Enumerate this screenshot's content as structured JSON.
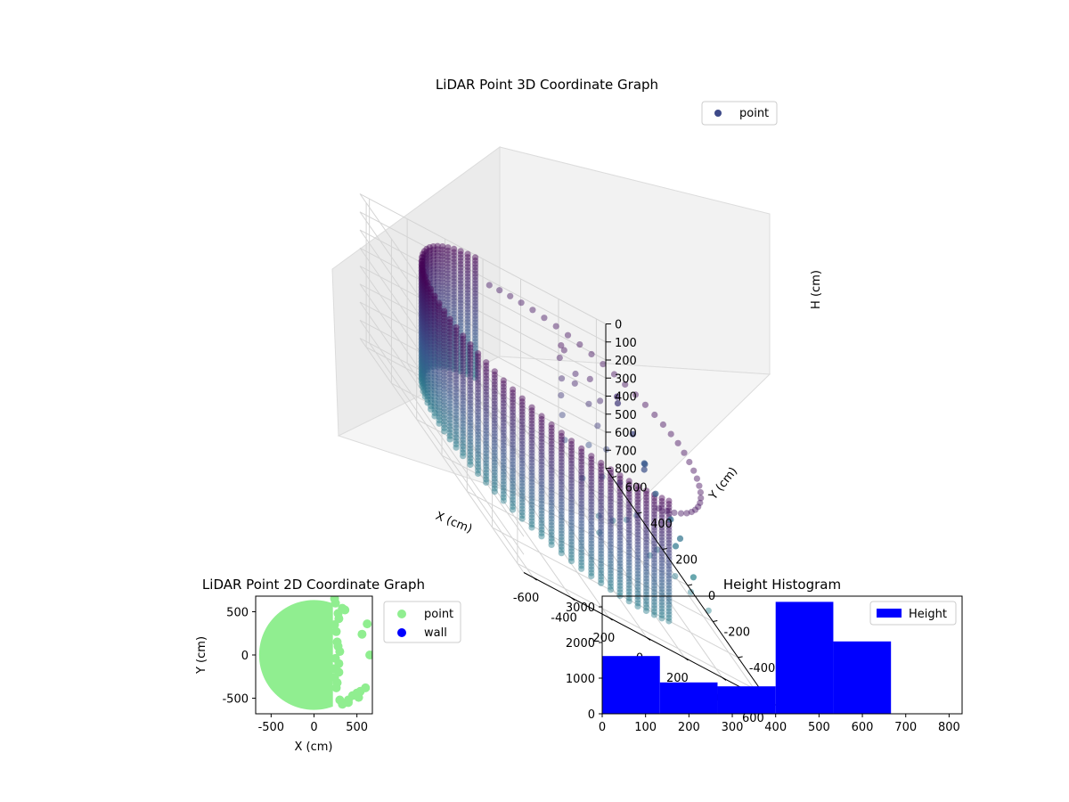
{
  "chart_data": [
    {
      "type": "scatter3d",
      "title": "LiDAR Point 3D Coordinate Graph",
      "xlabel": "X (cm)",
      "ylabel": "Y (cm)",
      "zlabel": "H (cm)",
      "xlim": [
        -650,
        650
      ],
      "ylim": [
        -650,
        650
      ],
      "zlim": [
        800,
        0
      ],
      "xticks": [
        -600,
        -400,
        -200,
        0,
        200,
        400,
        600
      ],
      "yticks": [
        -600,
        -400,
        -200,
        0,
        200,
        400,
        600
      ],
      "zticks": [
        0,
        100,
        200,
        300,
        400,
        500,
        600,
        700,
        800
      ],
      "legend": [
        "point"
      ],
      "legend_position": "upper right",
      "colormap": "viridis",
      "grid": true,
      "wall_radius_cm": 630,
      "wall_angle_range_deg": [
        95,
        285
      ],
      "wall_height_range_cm": [
        0,
        680
      ],
      "cluster_points": [
        [
          180,
          300,
          30
        ],
        [
          210,
          320,
          60
        ],
        [
          160,
          280,
          90
        ],
        [
          230,
          260,
          120
        ],
        [
          200,
          220,
          150
        ],
        [
          150,
          250,
          180
        ],
        [
          260,
          200,
          210
        ],
        [
          120,
          210,
          250
        ],
        [
          280,
          160,
          280
        ],
        [
          100,
          170,
          330
        ],
        [
          300,
          120,
          360
        ],
        [
          220,
          140,
          400
        ],
        [
          80,
          120,
          430
        ],
        [
          330,
          60,
          470
        ],
        [
          250,
          80,
          500
        ],
        [
          120,
          40,
          540
        ],
        [
          380,
          0,
          560
        ],
        [
          300,
          -40,
          590
        ],
        [
          200,
          -80,
          610
        ],
        [
          420,
          -100,
          630
        ],
        [
          350,
          -150,
          650
        ],
        [
          450,
          -200,
          660
        ],
        [
          500,
          -250,
          670
        ],
        [
          560,
          -300,
          690
        ],
        [
          100,
          -120,
          600
        ],
        [
          50,
          -200,
          640
        ],
        [
          300,
          250,
          100
        ],
        [
          320,
          200,
          160
        ]
      ],
      "outlier_points": [
        [
          530,
          380,
          200
        ],
        [
          560,
          420,
          260
        ],
        [
          580,
          330,
          330
        ],
        [
          610,
          280,
          430
        ],
        [
          620,
          300,
          440
        ],
        [
          600,
          180,
          500
        ],
        [
          640,
          120,
          560
        ],
        [
          650,
          60,
          600
        ],
        [
          600,
          20,
          630
        ],
        [
          640,
          -60,
          700
        ],
        [
          520,
          150,
          380
        ]
      ]
    },
    {
      "type": "scatter",
      "title": "LiDAR Point 2D Coordinate Graph",
      "xlabel": "X (cm)",
      "ylabel": "Y (cm)",
      "xlim": [
        -680,
        680
      ],
      "ylim": [
        -680,
        680
      ],
      "xticks": [
        -500,
        0,
        500
      ],
      "yticks": [
        -500,
        0,
        500
      ],
      "series": [
        {
          "name": "point",
          "color": "#90ee90",
          "shape": "disk",
          "radius_cm": 640,
          "cut_x_cm": 220
        },
        {
          "name": "wall",
          "color": "#0000ff",
          "values": []
        }
      ],
      "points": [
        [
          240,
          650
        ],
        [
          250,
          600
        ],
        [
          280,
          480
        ],
        [
          290,
          420
        ],
        [
          330,
          540
        ],
        [
          240,
          350
        ],
        [
          260,
          270
        ],
        [
          270,
          150
        ],
        [
          280,
          100
        ],
        [
          300,
          40
        ],
        [
          250,
          -40
        ],
        [
          290,
          -100
        ],
        [
          230,
          -160
        ],
        [
          290,
          -200
        ],
        [
          240,
          -260
        ],
        [
          270,
          -320
        ],
        [
          260,
          -380
        ],
        [
          300,
          -520
        ],
        [
          340,
          -560
        ],
        [
          400,
          -520
        ],
        [
          450,
          -470
        ],
        [
          500,
          -440
        ],
        [
          520,
          -490
        ],
        [
          540,
          -420
        ],
        [
          600,
          -380
        ],
        [
          560,
          240
        ],
        [
          650,
          0
        ],
        [
          620,
          360
        ],
        [
          360,
          520
        ],
        [
          400,
          -550
        ],
        [
          330,
          -570
        ]
      ],
      "legend_position": "outside right"
    },
    {
      "type": "bar",
      "title": "Height Histogram",
      "legend": [
        "Height"
      ],
      "legend_position": "upper right",
      "color": "#0000ff",
      "bin_edges": [
        0,
        133,
        266,
        400,
        533,
        666
      ],
      "values": [
        1620,
        880,
        770,
        3140,
        2030
      ],
      "xlim": [
        0,
        830
      ],
      "ylim": [
        0,
        3300
      ],
      "xticks": [
        0,
        100,
        200,
        300,
        400,
        500,
        600,
        700,
        800
      ],
      "yticks": [
        0,
        1000,
        2000,
        3000
      ]
    }
  ]
}
